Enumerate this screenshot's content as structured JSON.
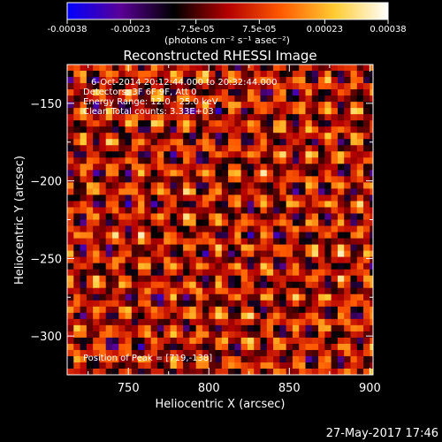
{
  "colorbar": {
    "tick_labels": [
      "-0.00038",
      "-0.00023",
      "-7.5e-05",
      "7.5e-05",
      "0.00023",
      "0.00038"
    ],
    "tick_values": [
      -0.00038,
      -0.00023,
      -7.5e-05,
      7.5e-05,
      0.00023,
      0.00038
    ],
    "range": [
      -0.00038,
      0.00038
    ],
    "units_label": "(photons cm⁻² s⁻¹ asec⁻²)",
    "colormap": [
      "#0000ff",
      "#5a0096",
      "#000000",
      "#b40000",
      "#ff5a00",
      "#ffcc33",
      "#ffffff"
    ]
  },
  "chart_data": {
    "type": "heatmap",
    "title": "Reconstructed RHESSI Image",
    "xlabel": "Heliocentric X (arcsec)",
    "ylabel": "Heliocentric Y (arcsec)",
    "xlim": [
      712,
      902
    ],
    "ylim": [
      -325,
      -125
    ],
    "x_ticks": [
      750,
      800,
      850,
      900
    ],
    "y_ticks": [
      -150,
      -200,
      -250,
      -300
    ],
    "x_tick_labels": [
      "750",
      "800",
      "850",
      "900"
    ],
    "y_tick_labels": [
      "−150",
      "−200",
      "−250",
      "−300"
    ],
    "annotations": [
      "6-Oct-2014 20:12:44.000 to 20:32:44.000",
      "Detectors: 3F 6F 9F, Att 0",
      "Energy Range: 12.0 - 25.0 keV",
      "Clean    Total counts: 3.33E+03"
    ],
    "peak_label": "Position of Peak = [719,-138]",
    "peak": [
      719,
      -138
    ]
  },
  "footer": {
    "date": "27-May-2017 17:46"
  }
}
